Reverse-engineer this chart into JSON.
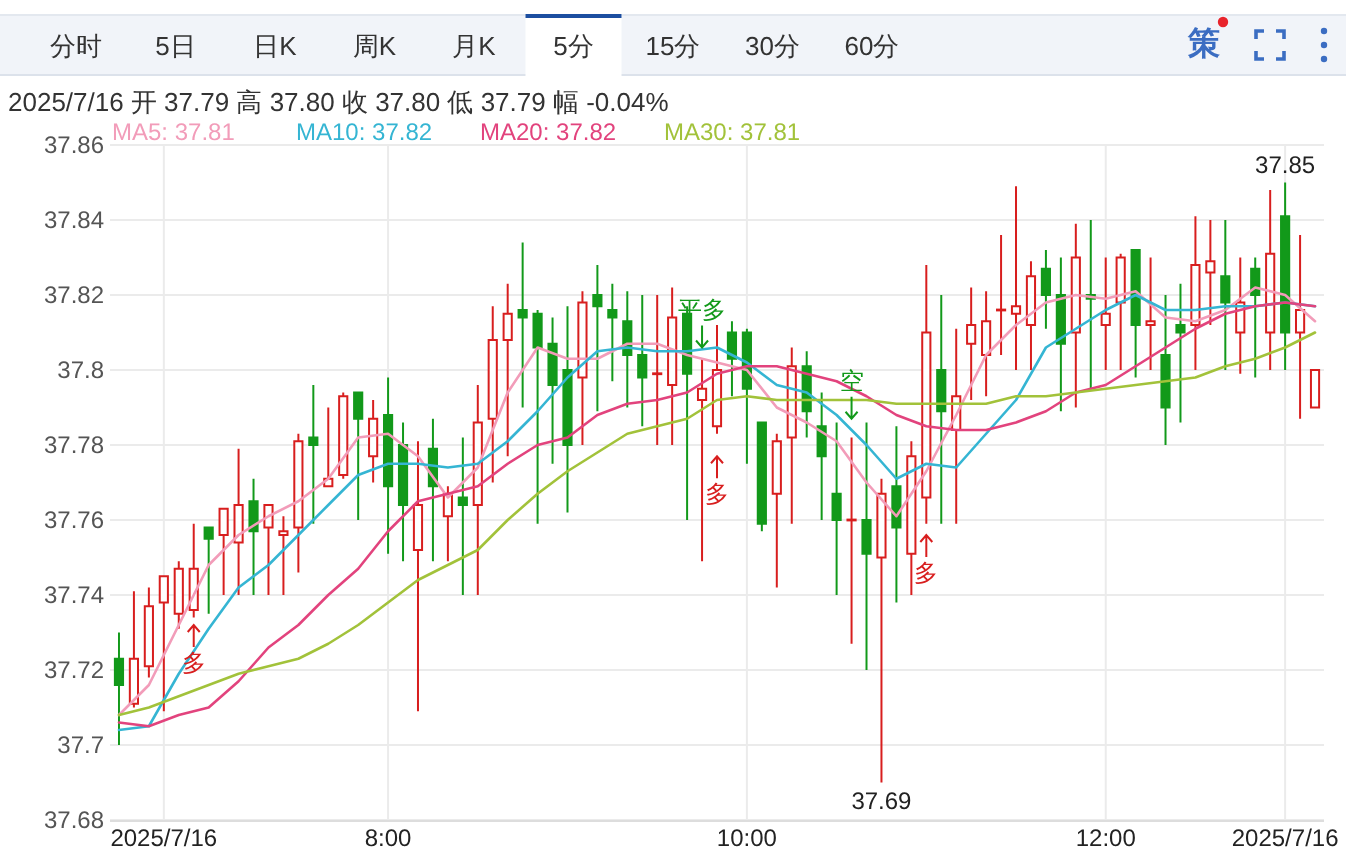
{
  "chart_data": {
    "type": "candlestick",
    "title": "2025/7/16 开 37.79 高 37.80 收 37.80 低 37.79 幅 -0.04%",
    "annotations": [
      "分时",
      "5日",
      "日K",
      "周K",
      "月K",
      "5分",
      "15分",
      "30分",
      "60分",
      "策",
      {
        "text": "37.85",
        "x": "2025-07-16T13:00",
        "y": 37.85
      },
      {
        "text": "37.69",
        "x": "2025-07-16T10:45",
        "y": 37.69
      },
      {
        "text": "多",
        "x": "2025-07-16T06:55",
        "y": 37.732
      },
      {
        "text": "平多",
        "x": "2025-07-16T09:45",
        "y": 37.806
      },
      {
        "text": "多",
        "x": "2025-07-16T09:50",
        "y": 37.777
      },
      {
        "text": "空",
        "x": "2025-07-16T10:35",
        "y": 37.787
      },
      {
        "text": "多",
        "x": "2025-07-16T11:00",
        "y": 37.756
      }
    ],
    "x": [
      "2025-07-16T06:30",
      "2025-07-16T06:35",
      "2025-07-16T06:40",
      "2025-07-16T06:45",
      "2025-07-16T06:50",
      "2025-07-16T06:55",
      "2025-07-16T07:00",
      "2025-07-16T07:05",
      "2025-07-16T07:10",
      "2025-07-16T07:15",
      "2025-07-16T07:20",
      "2025-07-16T07:25",
      "2025-07-16T07:30",
      "2025-07-16T07:35",
      "2025-07-16T07:40",
      "2025-07-16T07:45",
      "2025-07-16T07:50",
      "2025-07-16T07:55",
      "2025-07-16T08:00",
      "2025-07-16T08:05",
      "2025-07-16T08:10",
      "2025-07-16T08:15",
      "2025-07-16T08:20",
      "2025-07-16T08:25",
      "2025-07-16T08:30",
      "2025-07-16T08:35",
      "2025-07-16T08:40",
      "2025-07-16T08:45",
      "2025-07-16T08:50",
      "2025-07-16T08:55",
      "2025-07-16T09:00",
      "2025-07-16T09:05",
      "2025-07-16T09:10",
      "2025-07-16T09:15",
      "2025-07-16T09:20",
      "2025-07-16T09:25",
      "2025-07-16T09:30",
      "2025-07-16T09:35",
      "2025-07-16T09:40",
      "2025-07-16T09:45",
      "2025-07-16T09:50",
      "2025-07-16T09:55",
      "2025-07-16T10:00",
      "2025-07-16T10:05",
      "2025-07-16T10:10",
      "2025-07-16T10:15",
      "2025-07-16T10:20",
      "2025-07-16T10:25",
      "2025-07-16T10:30",
      "2025-07-16T10:35",
      "2025-07-16T10:40",
      "2025-07-16T10:45",
      "2025-07-16T10:50",
      "2025-07-16T10:55",
      "2025-07-16T11:00",
      "2025-07-16T11:05",
      "2025-07-16T11:10",
      "2025-07-16T11:15",
      "2025-07-16T11:20",
      "2025-07-16T11:25",
      "2025-07-16T11:30",
      "2025-07-16T11:35",
      "2025-07-16T11:40",
      "2025-07-16T11:45",
      "2025-07-16T11:50",
      "2025-07-16T11:55",
      "2025-07-16T12:00",
      "2025-07-16T12:05",
      "2025-07-16T12:10",
      "2025-07-16T12:15",
      "2025-07-16T12:20",
      "2025-07-16T12:25",
      "2025-07-16T12:30",
      "2025-07-16T12:35",
      "2025-07-16T12:40",
      "2025-07-16T12:45",
      "2025-07-16T12:50",
      "2025-07-16T12:55",
      "2025-07-16T13:00",
      "2025-07-16T13:05",
      "2025-07-16T13:10"
    ],
    "ohlc": [
      [
        37.723,
        37.73,
        37.7,
        37.716
      ],
      [
        37.711,
        37.741,
        37.71,
        37.723
      ],
      [
        37.721,
        37.742,
        37.718,
        37.737
      ],
      [
        37.738,
        37.745,
        37.709,
        37.745
      ],
      [
        37.735,
        37.749,
        37.731,
        37.747
      ],
      [
        37.736,
        37.759,
        37.734,
        37.747
      ],
      [
        37.758,
        37.758,
        37.735,
        37.755
      ],
      [
        37.756,
        37.763,
        37.74,
        37.763
      ],
      [
        37.754,
        37.779,
        37.74,
        37.764
      ],
      [
        37.765,
        37.771,
        37.74,
        37.757
      ],
      [
        37.758,
        37.764,
        37.74,
        37.764
      ],
      [
        37.756,
        37.761,
        37.74,
        37.757
      ],
      [
        37.758,
        37.783,
        37.746,
        37.781
      ],
      [
        37.782,
        37.796,
        37.759,
        37.78
      ],
      [
        37.769,
        37.79,
        37.769,
        37.771
      ],
      [
        37.772,
        37.794,
        37.771,
        37.793
      ],
      [
        37.794,
        37.794,
        37.76,
        37.787
      ],
      [
        37.777,
        37.792,
        37.77,
        37.787
      ],
      [
        37.788,
        37.798,
        37.751,
        37.769
      ],
      [
        37.78,
        37.786,
        37.749,
        37.764
      ],
      [
        37.752,
        37.781,
        37.709,
        37.764
      ],
      [
        37.779,
        37.787,
        37.749,
        37.769
      ],
      [
        37.761,
        37.769,
        37.749,
        37.767
      ],
      [
        37.766,
        37.782,
        37.74,
        37.764
      ],
      [
        37.764,
        37.796,
        37.74,
        37.786
      ],
      [
        37.787,
        37.817,
        37.77,
        37.808
      ],
      [
        37.808,
        37.823,
        37.777,
        37.815
      ],
      [
        37.816,
        37.834,
        37.79,
        37.814
      ],
      [
        37.815,
        37.816,
        37.759,
        37.806
      ],
      [
        37.807,
        37.814,
        37.775,
        37.796
      ],
      [
        37.8,
        37.817,
        37.762,
        37.78
      ],
      [
        37.798,
        37.821,
        37.78,
        37.818
      ],
      [
        37.82,
        37.828,
        37.789,
        37.817
      ],
      [
        37.816,
        37.823,
        37.797,
        37.814
      ],
      [
        37.813,
        37.821,
        37.79,
        37.804
      ],
      [
        37.804,
        37.82,
        37.785,
        37.798
      ],
      [
        37.799,
        37.82,
        37.78,
        37.799
      ],
      [
        37.796,
        37.822,
        37.78,
        37.814
      ],
      [
        37.815,
        37.817,
        37.76,
        37.799
      ],
      [
        37.792,
        37.803,
        37.749,
        37.795
      ],
      [
        37.785,
        37.812,
        37.783,
        37.8
      ],
      [
        37.81,
        37.813,
        37.793,
        37.803
      ],
      [
        37.81,
        37.811,
        37.775,
        37.795
      ],
      [
        37.786,
        37.786,
        37.757,
        37.759
      ],
      [
        37.767,
        37.783,
        37.742,
        37.781
      ],
      [
        37.782,
        37.806,
        37.759,
        37.801
      ],
      [
        37.801,
        37.805,
        37.782,
        37.789
      ],
      [
        37.785,
        37.794,
        37.76,
        37.777
      ],
      [
        37.767,
        37.786,
        37.74,
        37.76
      ],
      [
        37.76,
        37.782,
        37.727,
        37.76
      ],
      [
        37.76,
        37.786,
        37.72,
        37.751
      ],
      [
        37.75,
        37.771,
        37.69,
        37.767
      ],
      [
        37.769,
        37.785,
        37.738,
        37.758
      ],
      [
        37.751,
        37.781,
        37.74,
        37.777
      ],
      [
        37.766,
        37.828,
        37.759,
        37.81
      ],
      [
        37.8,
        37.82,
        37.759,
        37.789
      ],
      [
        37.784,
        37.811,
        37.759,
        37.793
      ],
      [
        37.807,
        37.822,
        37.792,
        37.812
      ],
      [
        37.804,
        37.821,
        37.793,
        37.813
      ],
      [
        37.816,
        37.836,
        37.804,
        37.816
      ],
      [
        37.815,
        37.849,
        37.8,
        37.817
      ],
      [
        37.812,
        37.829,
        37.8,
        37.825
      ],
      [
        37.827,
        37.832,
        37.811,
        37.82
      ],
      [
        37.82,
        37.83,
        37.789,
        37.807
      ],
      [
        37.81,
        37.839,
        37.79,
        37.83
      ],
      [
        37.82,
        37.84,
        37.795,
        37.819
      ],
      [
        37.812,
        37.83,
        37.8,
        37.815
      ],
      [
        37.818,
        37.831,
        37.8,
        37.83
      ],
      [
        37.832,
        37.832,
        37.798,
        37.812
      ],
      [
        37.812,
        37.83,
        37.8,
        37.813
      ],
      [
        37.804,
        37.82,
        37.78,
        37.79
      ],
      [
        37.812,
        37.823,
        37.786,
        37.81
      ],
      [
        37.812,
        37.841,
        37.8,
        37.828
      ],
      [
        37.826,
        37.84,
        37.812,
        37.829
      ],
      [
        37.825,
        37.84,
        37.8,
        37.818
      ],
      [
        37.81,
        37.83,
        37.799,
        37.818
      ],
      [
        37.827,
        37.83,
        37.798,
        37.82
      ],
      [
        37.81,
        37.848,
        37.8,
        37.831
      ],
      [
        37.841,
        37.85,
        37.8,
        37.81
      ],
      [
        37.81,
        37.836,
        37.787,
        37.816
      ],
      [
        37.79,
        37.8,
        37.79,
        37.8
      ]
    ],
    "colors": [
      "#12991a",
      "#d81e1e",
      "#d81e1e",
      "#d81e1e",
      "#d81e1e",
      "#d81e1e",
      "#12991a",
      "#d81e1e",
      "#d81e1e",
      "#12991a",
      "#d81e1e",
      "#d81e1e",
      "#d81e1e",
      "#12991a",
      "#d81e1e",
      "#d81e1e",
      "#12991a",
      "#d81e1e",
      "#12991a",
      "#12991a",
      "#d81e1e",
      "#12991a",
      "#d81e1e",
      "#12991a",
      "#d81e1e",
      "#d81e1e",
      "#d81e1e",
      "#12991a",
      "#12991a",
      "#12991a",
      "#12991a",
      "#d81e1e",
      "#12991a",
      "#12991a",
      "#12991a",
      "#12991a",
      "#d81e1e",
      "#d81e1e",
      "#12991a",
      "#d81e1e",
      "#d81e1e",
      "#12991a",
      "#12991a",
      "#12991a",
      "#d81e1e",
      "#d81e1e",
      "#12991a",
      "#12991a",
      "#12991a",
      "#d81e1e",
      "#12991a",
      "#d81e1e",
      "#12991a",
      "#d81e1e",
      "#d81e1e",
      "#12991a",
      "#d81e1e",
      "#d81e1e",
      "#d81e1e",
      "#d81e1e",
      "#d81e1e",
      "#d81e1e",
      "#12991a",
      "#12991a",
      "#d81e1e",
      "#12991a",
      "#d81e1e",
      "#d81e1e",
      "#12991a",
      "#d81e1e",
      "#12991a",
      "#12991a",
      "#d81e1e",
      "#d81e1e",
      "#12991a",
      "#d81e1e",
      "#12991a",
      "#d81e1e",
      "#12991a",
      "#d81e1e",
      "#d81e1e"
    ],
    "series": [
      {
        "name": "MA5: 37.81",
        "type": "line",
        "color": "#f29cb9",
        "x": [
          "2025-07-16T06:30",
          "2025-07-16T06:40",
          "2025-07-16T06:50",
          "2025-07-16T07:00",
          "2025-07-16T07:10",
          "2025-07-16T07:20",
          "2025-07-16T07:30",
          "2025-07-16T07:40",
          "2025-07-16T07:50",
          "2025-07-16T08:00",
          "2025-07-16T08:10",
          "2025-07-16T08:20",
          "2025-07-16T08:30",
          "2025-07-16T08:40",
          "2025-07-16T08:50",
          "2025-07-16T09:00",
          "2025-07-16T09:10",
          "2025-07-16T09:20",
          "2025-07-16T09:30",
          "2025-07-16T09:40",
          "2025-07-16T09:50",
          "2025-07-16T10:00",
          "2025-07-16T10:10",
          "2025-07-16T10:20",
          "2025-07-16T10:30",
          "2025-07-16T10:40",
          "2025-07-16T10:50",
          "2025-07-16T11:00",
          "2025-07-16T11:10",
          "2025-07-16T11:20",
          "2025-07-16T11:30",
          "2025-07-16T11:40",
          "2025-07-16T11:50",
          "2025-07-16T12:00",
          "2025-07-16T12:10",
          "2025-07-16T12:20",
          "2025-07-16T12:30",
          "2025-07-16T12:40",
          "2025-07-16T12:50",
          "2025-07-16T13:00",
          "2025-07-16T13:10"
        ],
        "values": [
          37.708,
          37.716,
          37.732,
          37.748,
          37.756,
          37.761,
          37.765,
          37.771,
          37.782,
          37.783,
          37.777,
          37.766,
          37.774,
          37.794,
          37.806,
          37.803,
          37.803,
          37.807,
          37.807,
          37.804,
          37.802,
          37.8,
          37.79,
          37.786,
          37.781,
          37.77,
          37.761,
          37.773,
          37.788,
          37.804,
          37.812,
          37.818,
          37.82,
          37.819,
          37.821,
          37.814,
          37.813,
          37.816,
          37.822,
          37.82,
          37.813
        ]
      },
      {
        "name": "MA10: 37.82",
        "type": "line",
        "color": "#35b5d3",
        "x": [
          "2025-07-16T06:30",
          "2025-07-16T06:40",
          "2025-07-16T06:50",
          "2025-07-16T07:00",
          "2025-07-16T07:10",
          "2025-07-16T07:20",
          "2025-07-16T07:30",
          "2025-07-16T07:40",
          "2025-07-16T07:50",
          "2025-07-16T08:00",
          "2025-07-16T08:10",
          "2025-07-16T08:20",
          "2025-07-16T08:30",
          "2025-07-16T08:40",
          "2025-07-16T08:50",
          "2025-07-16T09:00",
          "2025-07-16T09:10",
          "2025-07-16T09:20",
          "2025-07-16T09:30",
          "2025-07-16T09:40",
          "2025-07-16T09:50",
          "2025-07-16T10:00",
          "2025-07-16T10:10",
          "2025-07-16T10:20",
          "2025-07-16T10:30",
          "2025-07-16T10:40",
          "2025-07-16T10:50",
          "2025-07-16T11:00",
          "2025-07-16T11:10",
          "2025-07-16T11:20",
          "2025-07-16T11:30",
          "2025-07-16T11:40",
          "2025-07-16T11:50",
          "2025-07-16T12:00",
          "2025-07-16T12:10",
          "2025-07-16T12:20",
          "2025-07-16T12:30",
          "2025-07-16T12:40",
          "2025-07-16T12:50",
          "2025-07-16T13:00",
          "2025-07-16T13:10"
        ],
        "values": [
          37.704,
          37.705,
          37.719,
          37.731,
          37.742,
          37.748,
          37.756,
          37.764,
          37.772,
          37.775,
          37.775,
          37.774,
          37.775,
          37.781,
          37.789,
          37.798,
          37.805,
          37.806,
          37.805,
          37.805,
          37.806,
          37.802,
          37.796,
          37.794,
          37.788,
          37.78,
          37.771,
          37.775,
          37.774,
          37.783,
          37.792,
          37.806,
          37.811,
          37.816,
          37.82,
          37.816,
          37.816,
          37.817,
          37.817,
          37.818,
          37.817
        ]
      },
      {
        "name": "MA20: 37.82",
        "type": "line",
        "color": "#e2437d",
        "x": [
          "2025-07-16T06:30",
          "2025-07-16T06:40",
          "2025-07-16T06:50",
          "2025-07-16T07:00",
          "2025-07-16T07:10",
          "2025-07-16T07:20",
          "2025-07-16T07:30",
          "2025-07-16T07:40",
          "2025-07-16T07:50",
          "2025-07-16T08:00",
          "2025-07-16T08:10",
          "2025-07-16T08:20",
          "2025-07-16T08:30",
          "2025-07-16T08:40",
          "2025-07-16T08:50",
          "2025-07-16T09:00",
          "2025-07-16T09:10",
          "2025-07-16T09:20",
          "2025-07-16T09:30",
          "2025-07-16T09:40",
          "2025-07-16T09:50",
          "2025-07-16T10:00",
          "2025-07-16T10:10",
          "2025-07-16T10:20",
          "2025-07-16T10:30",
          "2025-07-16T10:40",
          "2025-07-16T10:50",
          "2025-07-16T11:00",
          "2025-07-16T11:10",
          "2025-07-16T11:20",
          "2025-07-16T11:30",
          "2025-07-16T11:40",
          "2025-07-16T11:50",
          "2025-07-16T12:00",
          "2025-07-16T12:10",
          "2025-07-16T12:20",
          "2025-07-16T12:30",
          "2025-07-16T12:40",
          "2025-07-16T12:50",
          "2025-07-16T13:00",
          "2025-07-16T13:10"
        ],
        "values": [
          37.706,
          37.705,
          37.708,
          37.71,
          37.717,
          37.726,
          37.732,
          37.74,
          37.747,
          37.757,
          37.765,
          37.767,
          37.769,
          37.775,
          37.78,
          37.782,
          37.788,
          37.791,
          37.792,
          37.794,
          37.799,
          37.801,
          37.801,
          37.799,
          37.797,
          37.793,
          37.788,
          37.785,
          37.784,
          37.784,
          37.786,
          37.789,
          37.794,
          37.796,
          37.801,
          37.806,
          37.811,
          37.815,
          37.817,
          37.818,
          37.817
        ]
      },
      {
        "name": "MA30: 37.81",
        "type": "line",
        "color": "#a2c23a",
        "x": [
          "2025-07-16T06:30",
          "2025-07-16T06:40",
          "2025-07-16T06:50",
          "2025-07-16T07:00",
          "2025-07-16T07:10",
          "2025-07-16T07:20",
          "2025-07-16T07:30",
          "2025-07-16T07:40",
          "2025-07-16T07:50",
          "2025-07-16T08:00",
          "2025-07-16T08:10",
          "2025-07-16T08:20",
          "2025-07-16T08:30",
          "2025-07-16T08:40",
          "2025-07-16T08:50",
          "2025-07-16T09:00",
          "2025-07-16T09:10",
          "2025-07-16T09:20",
          "2025-07-16T09:30",
          "2025-07-16T09:40",
          "2025-07-16T09:50",
          "2025-07-16T10:00",
          "2025-07-16T10:10",
          "2025-07-16T10:20",
          "2025-07-16T10:30",
          "2025-07-16T10:40",
          "2025-07-16T10:50",
          "2025-07-16T11:00",
          "2025-07-16T11:10",
          "2025-07-16T11:20",
          "2025-07-16T11:30",
          "2025-07-16T11:40",
          "2025-07-16T11:50",
          "2025-07-16T12:00",
          "2025-07-16T12:10",
          "2025-07-16T12:20",
          "2025-07-16T12:30",
          "2025-07-16T12:40",
          "2025-07-16T12:50",
          "2025-07-16T13:00",
          "2025-07-16T13:10"
        ],
        "values": [
          37.708,
          37.71,
          37.713,
          37.716,
          37.719,
          37.721,
          37.723,
          37.727,
          37.732,
          37.738,
          37.744,
          37.748,
          37.752,
          37.76,
          37.767,
          37.773,
          37.778,
          37.783,
          37.785,
          37.787,
          37.792,
          37.793,
          37.792,
          37.792,
          37.792,
          37.792,
          37.791,
          37.791,
          37.791,
          37.791,
          37.793,
          37.793,
          37.794,
          37.795,
          37.796,
          37.797,
          37.798,
          37.801,
          37.803,
          37.806,
          37.81
        ]
      }
    ],
    "xlim": [
      "2025-07-16T06:27",
      "2025-07-16T13:13"
    ],
    "xticks": [
      {
        "value": "2025-07-16T06:45",
        "label": "2025/7/16"
      },
      {
        "value": "2025-07-16T08:00",
        "label": "8:00"
      },
      {
        "value": "2025-07-16T10:00",
        "label": "10:00"
      },
      {
        "value": "2025-07-16T12:00",
        "label": "12:00"
      },
      {
        "value": "2025-07-16T13:00",
        "label": "2025/7/16"
      }
    ],
    "ylim": [
      37.68,
      37.86
    ],
    "yticks": [
      37.68,
      37.7,
      37.72,
      37.74,
      37.76,
      37.78,
      37.8,
      37.82,
      37.84,
      37.86
    ],
    "grid": true,
    "legend": "top left"
  }
}
